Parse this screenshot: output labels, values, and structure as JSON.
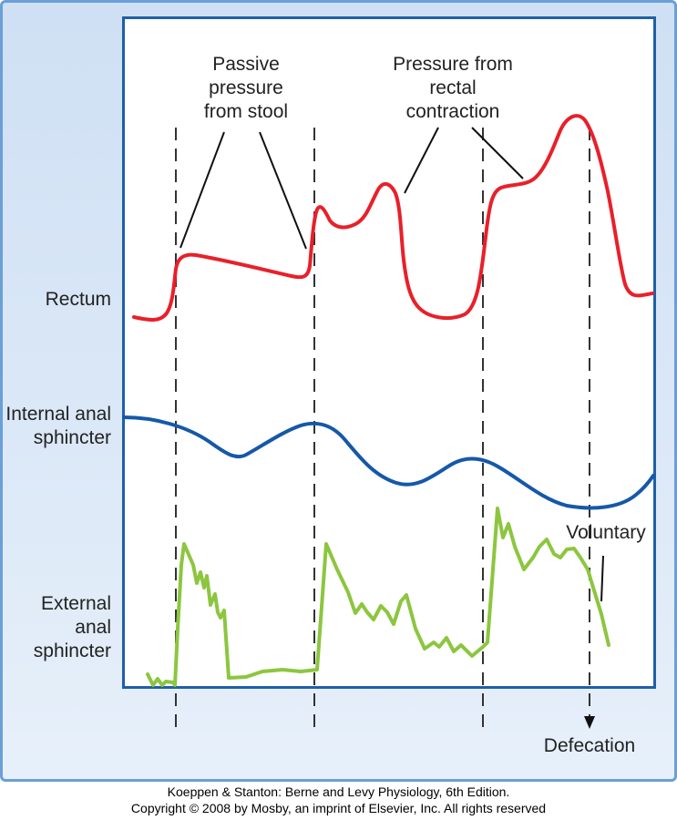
{
  "annotations": {
    "passive": "Passive pressure from stool",
    "rectal": "Pressure from rectal contraction",
    "voluntary": "Voluntary",
    "defecation": "Defecation"
  },
  "traces": {
    "rectum": {
      "label": "Rectum",
      "color": "#e8202a"
    },
    "internal": {
      "label": "Internal anal sphincter",
      "color": "#1558a8"
    },
    "external": {
      "label": "External anal sphincter",
      "color": "#8cc63f"
    }
  },
  "credit": {
    "line1": "Koeppen & Stanton: Berne and Levy Physiology, 6th Edition.",
    "line2": "Copyright © 2008 by Mosby, an imprint of Elsevier, Inc. All rights reserved"
  }
}
